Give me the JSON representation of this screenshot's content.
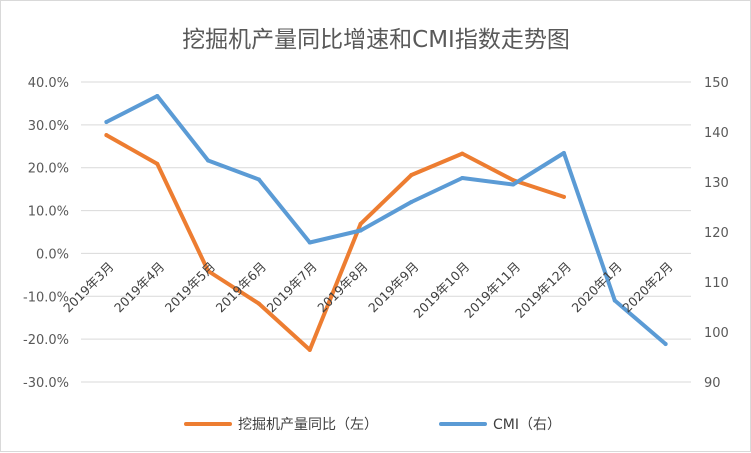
{
  "chart_data": {
    "type": "line",
    "title": "挖掘机产量同比增速和CMI指数走势图",
    "categories": [
      "2019年3月",
      "2019年4月",
      "2019年5月",
      "2019年6月",
      "2019年7月",
      "2019年8月",
      "2019年9月",
      "2019年10月",
      "2019年11月",
      "2019年12月",
      "2020年1月",
      "2020年2月"
    ],
    "left_axis": {
      "ticks": [
        "40.0%",
        "30.0%",
        "20.0%",
        "10.0%",
        "0.0%",
        "-10.0%",
        "-20.0%",
        "-30.0%"
      ],
      "ylim": [
        -30,
        40
      ]
    },
    "right_axis": {
      "ticks": [
        "150",
        "140",
        "130",
        "120",
        "110",
        "100",
        "90"
      ],
      "ylim": [
        90,
        150
      ]
    },
    "series": [
      {
        "name": "挖掘机产量同比（左）",
        "axis": "left",
        "color": "#ed7d31",
        "values": [
          27.6,
          20.9,
          -4.1,
          -11.7,
          -22.5,
          6.9,
          18.3,
          23.3,
          17.1,
          13.2,
          null,
          null
        ]
      },
      {
        "name": "CMI（右）",
        "axis": "right",
        "color": "#5b9bd5",
        "values": [
          142.0,
          147.2,
          134.3,
          130.5,
          117.9,
          120.3,
          126.0,
          130.8,
          129.5,
          135.8,
          106.3,
          97.6
        ]
      }
    ],
    "grid": true,
    "legend": "bottom"
  }
}
